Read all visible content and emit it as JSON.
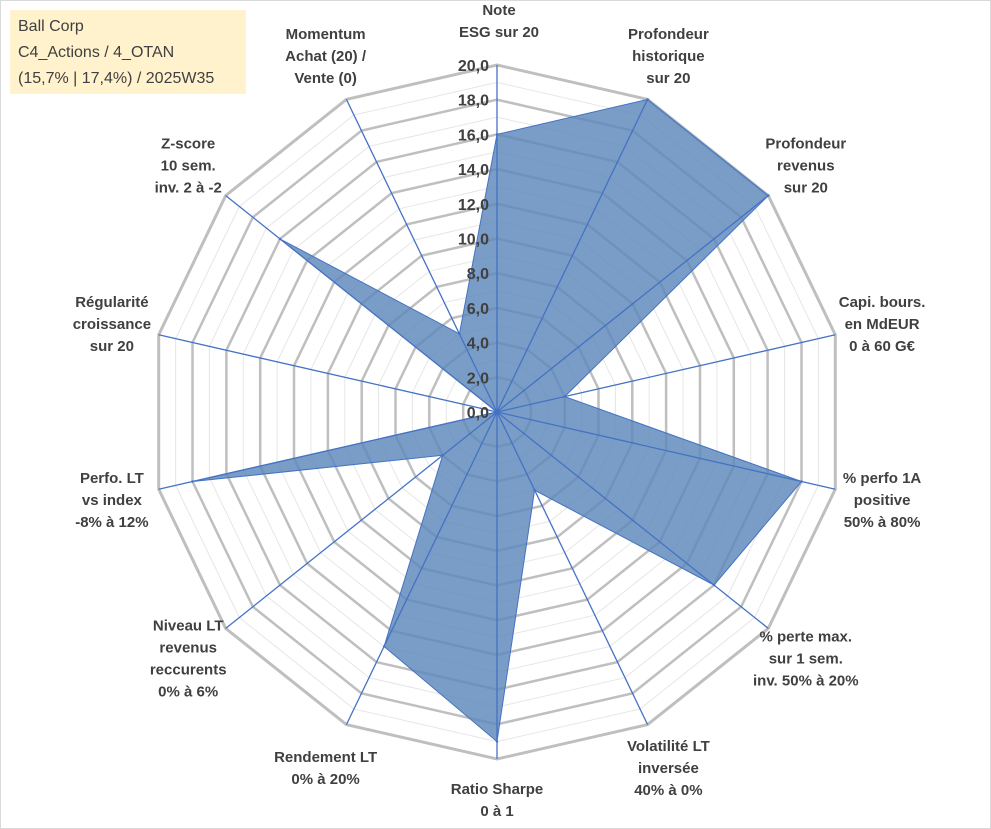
{
  "infobox": {
    "line1": "Ball Corp",
    "line2": "C4_Actions / 4_OTAN",
    "line3": "(15,7% | 17,4%) / 2025W35"
  },
  "chart_data": {
    "type": "radar",
    "categories": [
      [
        "Note",
        "ESG sur 20"
      ],
      [
        "Profondeur",
        "historique",
        "sur 20"
      ],
      [
        "Profondeur",
        "revenus",
        "sur 20"
      ],
      [
        "Capi. bours.",
        "en MdEUR",
        "0 à 60 G€"
      ],
      [
        "% perfo 1A",
        "positive",
        "50% à 80%"
      ],
      [
        "% perte max.",
        "sur 1 sem.",
        "inv. 50% à 20%"
      ],
      [
        "Volatilité LT",
        "inversée",
        "40% à 0%"
      ],
      [
        "Ratio Sharpe",
        "0 à 1"
      ],
      [
        "Rendement LT",
        "0% à 20%"
      ],
      [
        "Niveau LT",
        "revenus",
        "reccurents",
        "0% à 6%"
      ],
      [
        "Perfo. LT",
        "vs index",
        "-8% à 12%"
      ],
      [
        "Régularité",
        "croissance",
        "sur 20"
      ],
      [
        "Z-score",
        "10 sem.",
        "inv. 2 à -2"
      ],
      [
        "Momentum",
        "Achat (20) /",
        "Vente (0)"
      ]
    ],
    "values": [
      16.0,
      20.0,
      20.0,
      4.0,
      18.0,
      16.0,
      5.0,
      19.0,
      15.0,
      4.0,
      18.0,
      0.0,
      16.0,
      5.0
    ],
    "rlim": [
      0,
      20
    ],
    "ticks": [
      "0,0",
      "2,0",
      "4,0",
      "6,0",
      "8,0",
      "10,0",
      "12,0",
      "14,0",
      "16,0",
      "18,0",
      "20,0"
    ],
    "grid": true,
    "colors": {
      "fill": "#5b87b9",
      "stroke": "#4472c4",
      "spoke": "#4472c4",
      "major_grid": "#bfbfbf",
      "minor_grid": "#e6e6e6"
    }
  }
}
